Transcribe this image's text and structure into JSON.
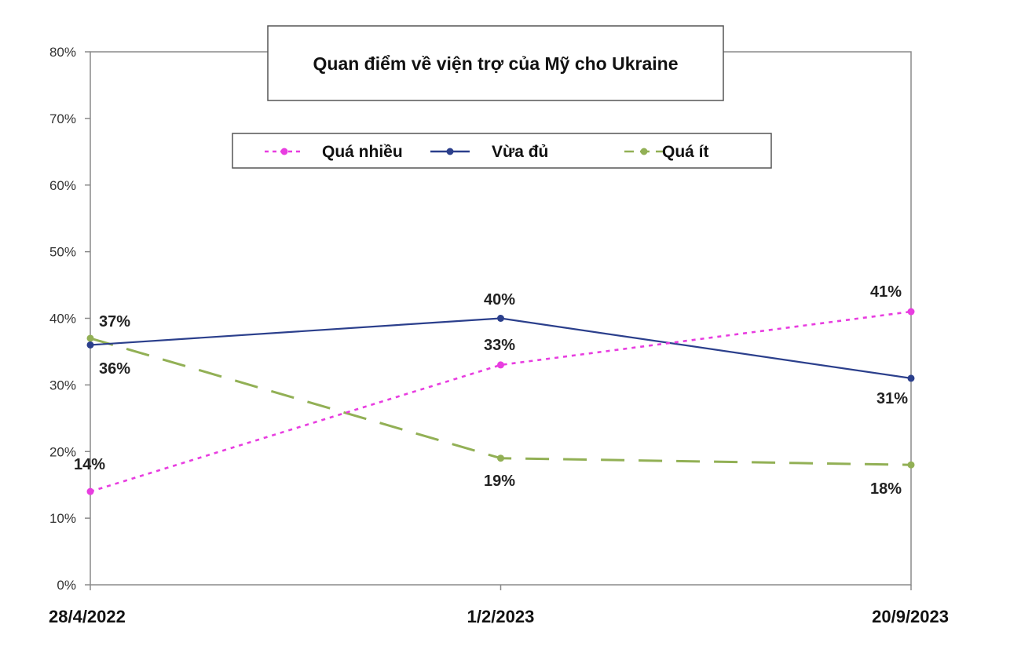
{
  "chart_data": {
    "type": "line",
    "title": "Quan điểm về viện trợ của Mỹ cho Ukraine",
    "categories": [
      "28/4/2022",
      "1/2/2023",
      "20/9/2023"
    ],
    "y_ticks": [
      "0%",
      "10%",
      "20%",
      "30%",
      "40%",
      "50%",
      "60%",
      "70%",
      "80%"
    ],
    "ylim": [
      0,
      80
    ],
    "grid": false,
    "legend_position": "top",
    "series": [
      {
        "name": "Quá nhiều",
        "values": [
          14,
          33,
          41
        ],
        "labels": [
          "14%",
          "33%",
          "41%"
        ],
        "color": "#e83de0",
        "style": "dotted"
      },
      {
        "name": "Vừa đủ",
        "values": [
          36,
          40,
          31
        ],
        "labels": [
          "36%",
          "40%",
          "31%"
        ],
        "color": "#2b3f8c",
        "style": "solid"
      },
      {
        "name": "Quá ít",
        "values": [
          37,
          19,
          18
        ],
        "labels": [
          "37%",
          "19%",
          "18%"
        ],
        "color": "#92b055",
        "style": "dashed"
      }
    ]
  }
}
